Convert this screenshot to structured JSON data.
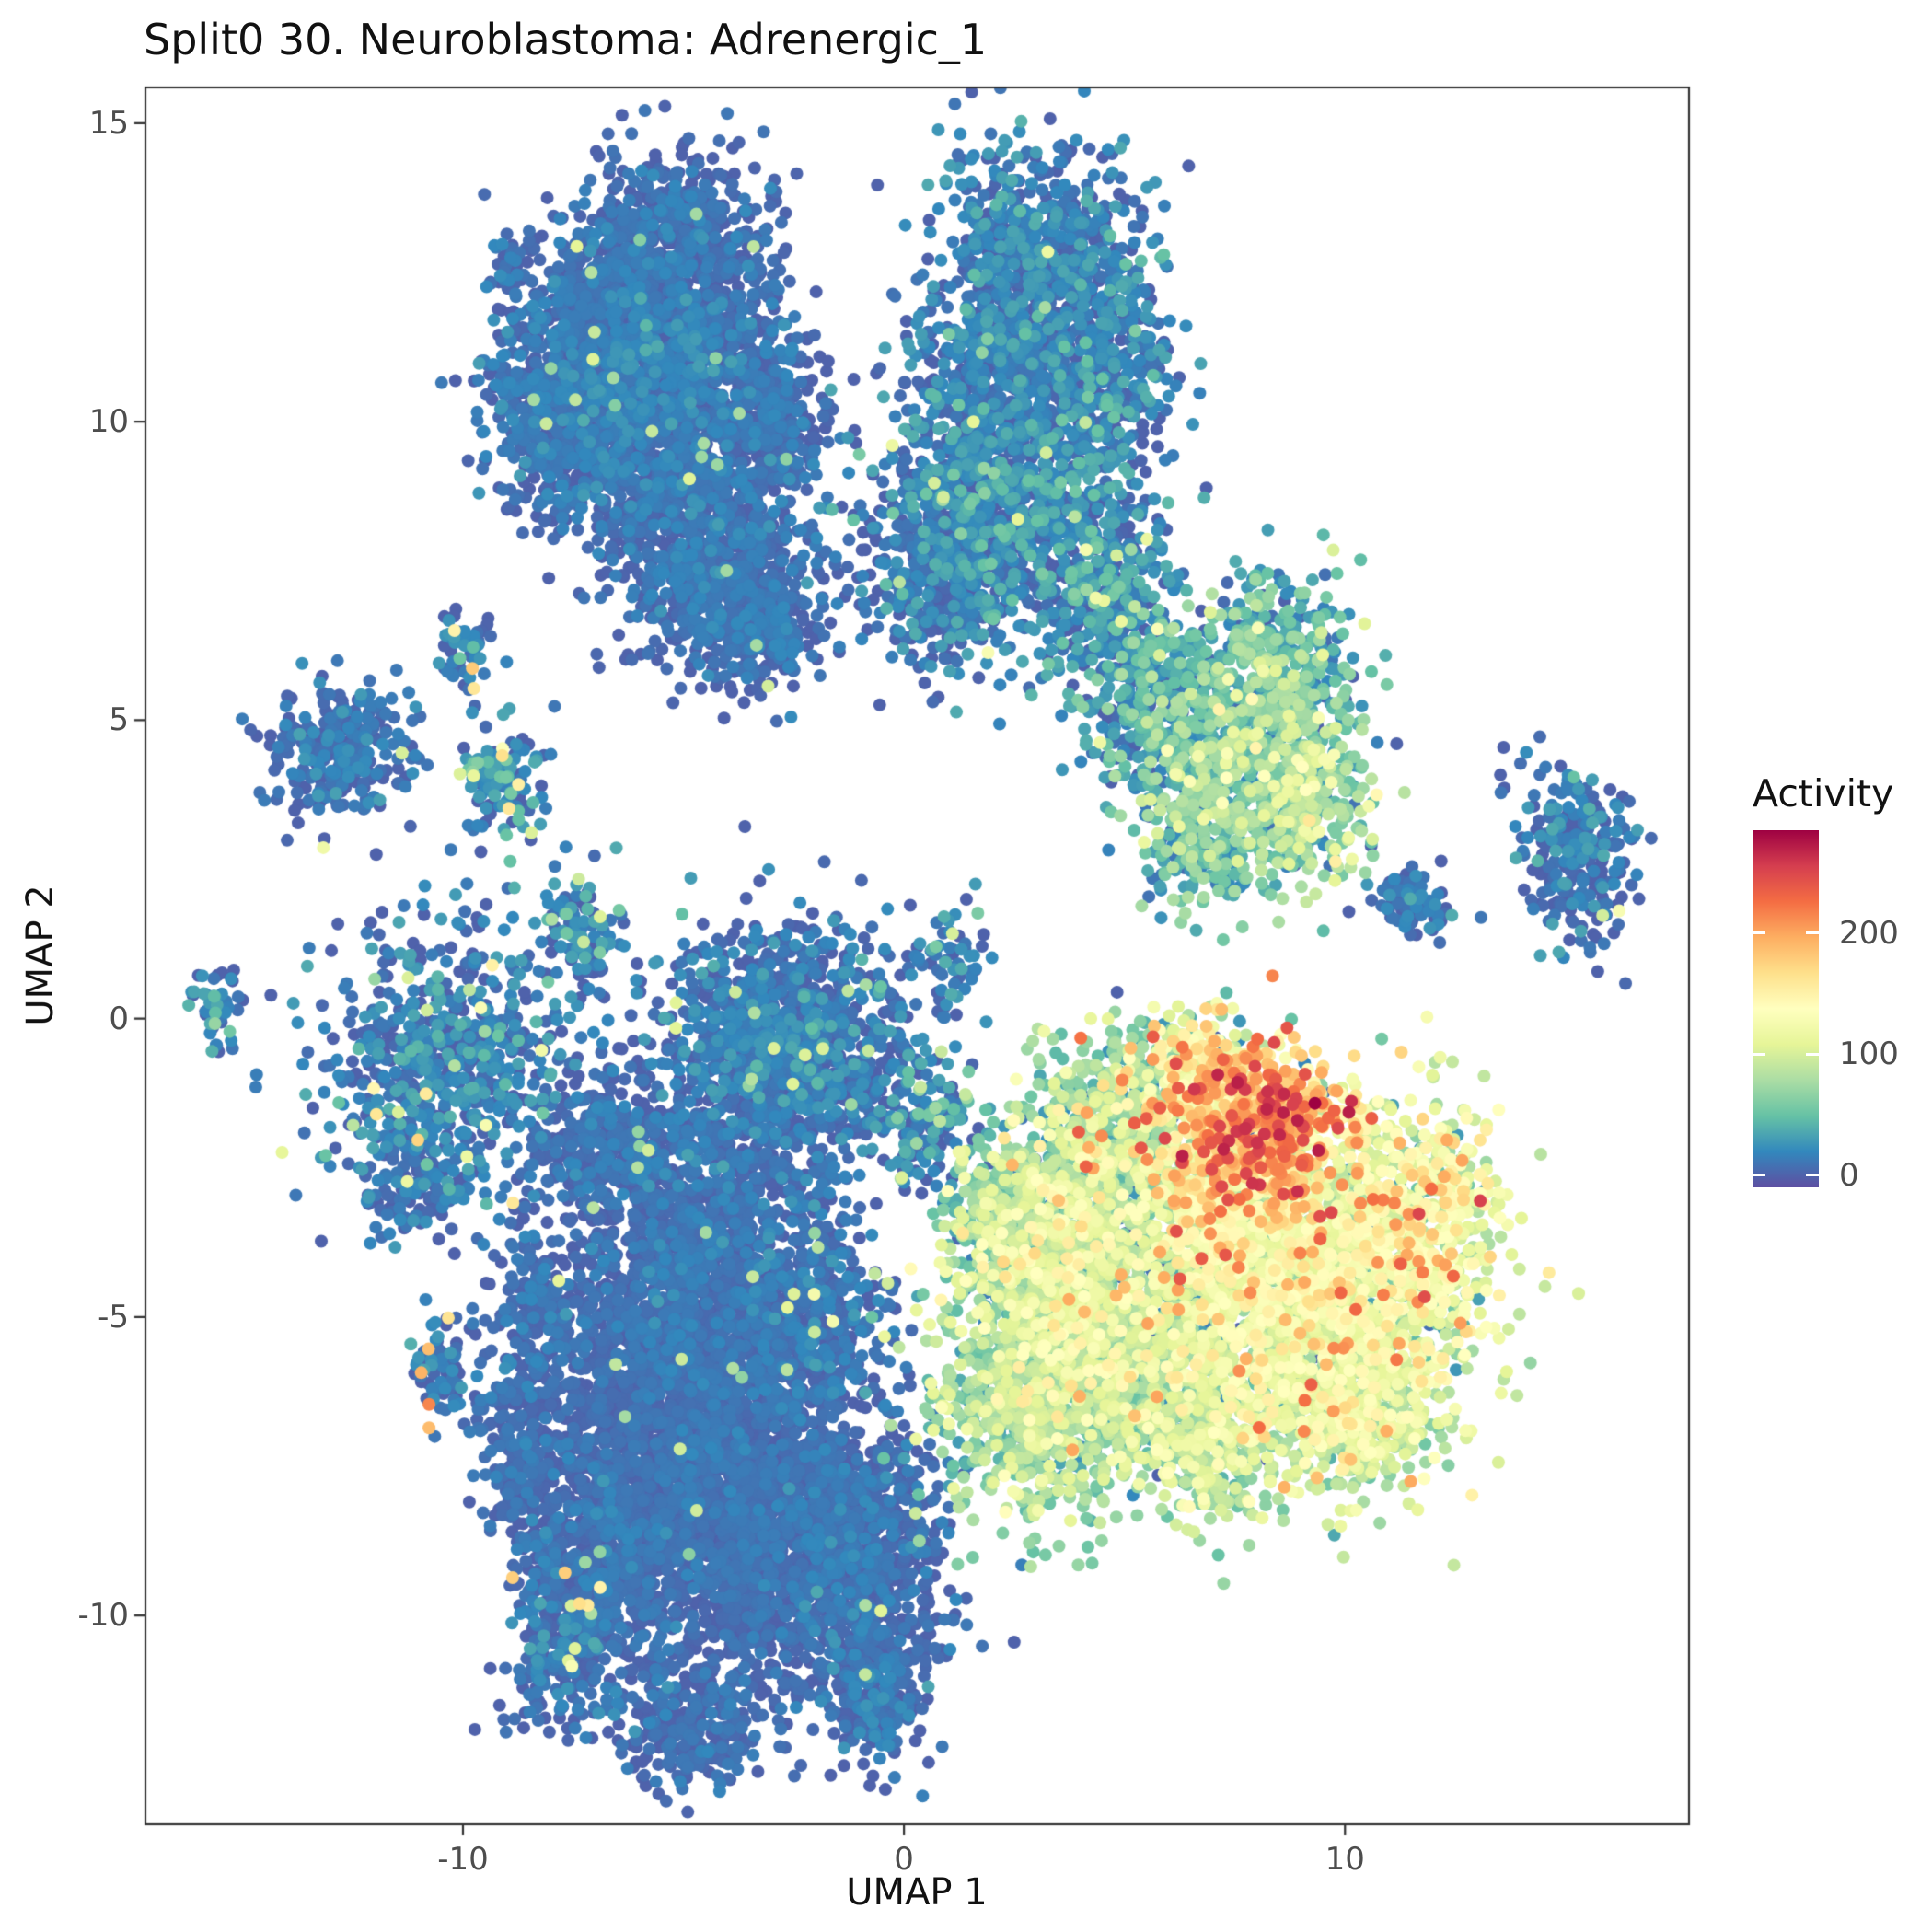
{
  "chart_data": {
    "type": "scatter",
    "title": "Split0 30. Neuroblastoma: Adrenergic_1",
    "xlabel": "UMAP 1",
    "ylabel": "UMAP 2",
    "xlim": [
      -17.2,
      17.8
    ],
    "ylim": [
      -13.5,
      15.6
    ],
    "x_ticks": [
      -10,
      0,
      10
    ],
    "y_ticks": [
      -10,
      -5,
      0,
      5,
      10,
      15
    ],
    "grid": false,
    "point_radius_px": 7,
    "colors": {
      "panel_border": "#333333",
      "tick": "#333333",
      "tick_label": "#4d4d4d",
      "title": "#111111",
      "background": "#ffffff"
    },
    "legend": {
      "title": "Activity",
      "position": "right",
      "domain": [
        -10,
        285
      ],
      "ticks": [
        0,
        100,
        200
      ],
      "colormap": [
        {
          "t": 0.0,
          "c": "#5e4fa2"
        },
        {
          "t": 0.1,
          "c": "#3288bd"
        },
        {
          "t": 0.2,
          "c": "#66c2a5"
        },
        {
          "t": 0.3,
          "c": "#abdda4"
        },
        {
          "t": 0.4,
          "c": "#e6f598"
        },
        {
          "t": 0.5,
          "c": "#ffffbf"
        },
        {
          "t": 0.6,
          "c": "#fee08b"
        },
        {
          "t": 0.7,
          "c": "#fdae61"
        },
        {
          "t": 0.8,
          "c": "#f46d43"
        },
        {
          "t": 0.9,
          "c": "#d53e4f"
        },
        {
          "t": 1.0,
          "c": "#9e0142"
        }
      ]
    },
    "seed": 42,
    "cluster_fields": [
      "cx",
      "cy",
      "sx",
      "sy",
      "n",
      "act_mean",
      "act_sd",
      "bright_frac",
      "bright_min",
      "bright_max",
      "rot"
    ],
    "clusters": [
      [
        -5.2,
        13.0,
        1.05,
        0.75,
        650,
        5,
        8,
        0.004,
        60,
        110,
        0
      ],
      [
        -6.9,
        11.7,
        0.9,
        0.75,
        480,
        5,
        8,
        0.004,
        60,
        110,
        0
      ],
      [
        -7.9,
        10.2,
        0.85,
        0.9,
        520,
        7,
        10,
        0.005,
        60,
        110,
        0
      ],
      [
        -6.3,
        9.7,
        0.8,
        0.8,
        430,
        7,
        10,
        0.004,
        60,
        110,
        0
      ],
      [
        -4.7,
        9.3,
        0.9,
        0.85,
        480,
        5,
        8,
        0.006,
        60,
        120,
        0
      ],
      [
        -3.5,
        10.7,
        0.7,
        0.9,
        330,
        5,
        8,
        0.003,
        60,
        100,
        0
      ],
      [
        -4.1,
        7.4,
        1.15,
        0.85,
        750,
        5,
        8,
        0.003,
        60,
        110,
        0
      ],
      [
        -3.0,
        6.5,
        0.5,
        0.5,
        150,
        5,
        8,
        0.003,
        60,
        100,
        0
      ],
      [
        -8.9,
        12.7,
        0.25,
        0.3,
        40,
        8,
        10,
        0,
        0,
        0,
        0
      ],
      [
        -5.6,
        11.2,
        1.0,
        0.6,
        380,
        8,
        12,
        0.005,
        60,
        110,
        0
      ],
      [
        -2.6,
        9.8,
        0.45,
        0.55,
        120,
        5,
        8,
        0.004,
        60,
        100,
        0
      ],
      [
        3.0,
        12.7,
        1.15,
        0.95,
        750,
        10,
        14,
        0.006,
        60,
        120,
        0
      ],
      [
        4.4,
        10.9,
        0.8,
        0.8,
        340,
        12,
        16,
        0.006,
        60,
        120,
        0
      ],
      [
        2.0,
        10.8,
        0.8,
        0.75,
        330,
        9,
        12,
        0.004,
        60,
        110,
        0
      ],
      [
        2.3,
        8.6,
        1.45,
        1.15,
        1050,
        14,
        18,
        0.01,
        60,
        130,
        0
      ],
      [
        0.9,
        7.4,
        0.7,
        0.8,
        280,
        10,
        14,
        0.004,
        60,
        110,
        0
      ],
      [
        4.6,
        6.8,
        0.8,
        0.9,
        340,
        20,
        20,
        0.01,
        60,
        130,
        0
      ],
      [
        5.7,
        5.3,
        0.7,
        0.9,
        280,
        30,
        24,
        0.01,
        60,
        140,
        0
      ],
      [
        7.8,
        4.6,
        1.2,
        1.0,
        650,
        55,
        28,
        0.02,
        100,
        150,
        0
      ],
      [
        8.9,
        3.5,
        0.8,
        0.65,
        280,
        65,
        30,
        0.02,
        100,
        160,
        0
      ],
      [
        6.7,
        3.1,
        0.6,
        0.7,
        190,
        50,
        25,
        0.01,
        90,
        140,
        0
      ],
      [
        8.4,
        6.0,
        0.8,
        0.7,
        280,
        35,
        24,
        0.01,
        80,
        140,
        0
      ],
      [
        1.0,
        0.9,
        0.45,
        0.6,
        60,
        15,
        16,
        0.02,
        60,
        110,
        0
      ],
      [
        15.3,
        2.7,
        0.6,
        0.8,
        270,
        8,
        12,
        0.012,
        80,
        130,
        0.3
      ],
      [
        11.5,
        1.95,
        0.55,
        0.27,
        90,
        8,
        12,
        0.022,
        90,
        130,
        -0.35
      ],
      [
        -12.7,
        4.5,
        0.78,
        0.52,
        300,
        7,
        10,
        0.008,
        60,
        120,
        0.15
      ],
      [
        -9.9,
        6.1,
        0.3,
        0.35,
        60,
        12,
        16,
        0.035,
        140,
        190,
        0
      ],
      [
        -9.2,
        4.05,
        0.5,
        0.45,
        120,
        20,
        22,
        0.05,
        100,
        170,
        0
      ],
      [
        -15.6,
        0.2,
        0.28,
        0.33,
        55,
        15,
        20,
        0.05,
        60,
        110,
        0
      ],
      [
        -10.4,
        -0.7,
        1.4,
        1.15,
        680,
        12,
        16,
        0.03,
        60,
        180,
        0
      ],
      [
        -7.4,
        1.4,
        0.45,
        0.55,
        110,
        15,
        18,
        0.03,
        70,
        120,
        0
      ],
      [
        -11.0,
        -2.8,
        0.5,
        0.4,
        110,
        8,
        12,
        0.02,
        60,
        120,
        0
      ],
      [
        -2.6,
        -0.5,
        1.35,
        1.0,
        1300,
        8,
        12,
        0.008,
        60,
        120,
        0
      ],
      [
        0.5,
        -1.7,
        0.55,
        0.55,
        140,
        20,
        20,
        0.02,
        60,
        120,
        0
      ],
      [
        -4.6,
        -3.4,
        1.2,
        1.0,
        800,
        5,
        8,
        0.003,
        60,
        100,
        0
      ],
      [
        -5.0,
        -6.4,
        1.5,
        1.6,
        2100,
        4,
        6,
        0.002,
        60,
        100,
        0
      ],
      [
        -3.4,
        -8.7,
        1.2,
        1.35,
        1200,
        4,
        6,
        0.002,
        60,
        100,
        0
      ],
      [
        -6.6,
        -9.1,
        0.8,
        1.0,
        480,
        5,
        8,
        0.004,
        60,
        110,
        0
      ],
      [
        -8.6,
        -7.4,
        0.55,
        1.15,
        300,
        5,
        8,
        0.004,
        60,
        110,
        0.25
      ],
      [
        -7.8,
        -10.4,
        0.5,
        0.75,
        230,
        8,
        12,
        0.025,
        90,
        185,
        -0.3
      ],
      [
        -10.5,
        -5.8,
        0.3,
        0.5,
        70,
        8,
        12,
        0.02,
        160,
        215,
        0
      ],
      [
        -0.9,
        -9.2,
        0.95,
        1.3,
        850,
        5,
        8,
        0.003,
        60,
        110,
        0
      ],
      [
        -0.6,
        -11.4,
        0.5,
        0.55,
        180,
        7,
        10,
        0.004,
        60,
        100,
        0
      ],
      [
        -5.0,
        -11.9,
        0.8,
        0.5,
        240,
        5,
        8,
        0.004,
        60,
        100,
        0
      ],
      [
        -2.1,
        -5.0,
        0.85,
        0.85,
        420,
        7,
        10,
        0.01,
        60,
        130,
        0
      ],
      [
        1.2,
        -10.0,
        0.07,
        0.07,
        2,
        8,
        6,
        0,
        0,
        0,
        0
      ],
      [
        -6.9,
        -2.2,
        0.7,
        0.6,
        280,
        5,
        8,
        0.003,
        60,
        100,
        0
      ],
      [
        -8.2,
        -4.9,
        0.45,
        0.75,
        170,
        5,
        8,
        0.01,
        60,
        120,
        0.2
      ],
      [
        3.6,
        -4.4,
        1.2,
        1.1,
        1000,
        90,
        30,
        0.01,
        160,
        220,
        0
      ],
      [
        3.1,
        -6.5,
        1.2,
        1.0,
        800,
        70,
        26,
        0.005,
        150,
        200,
        0
      ],
      [
        5.1,
        -5.6,
        0.9,
        1.0,
        500,
        75,
        28,
        0.008,
        150,
        210,
        0
      ],
      [
        2.2,
        -3.3,
        0.7,
        0.7,
        300,
        55,
        26,
        0.01,
        140,
        200,
        0
      ],
      [
        9.2,
        -4.6,
        1.75,
        1.45,
        1950,
        105,
        28,
        0.02,
        170,
        240,
        0
      ],
      [
        11.7,
        -3.4,
        0.85,
        0.9,
        430,
        110,
        35,
        0.03,
        180,
        255,
        0
      ],
      [
        7.2,
        -3.1,
        1.0,
        0.9,
        520,
        110,
        35,
        0.03,
        170,
        240,
        0
      ],
      [
        8.0,
        -1.8,
        1.0,
        0.72,
        520,
        185,
        32,
        0.1,
        230,
        272,
        0
      ],
      [
        6.7,
        -0.95,
        0.7,
        0.5,
        230,
        120,
        40,
        0.05,
        200,
        250,
        0
      ],
      [
        5.2,
        -1.5,
        1.0,
        0.7,
        380,
        60,
        25,
        0.02,
        120,
        180,
        0
      ],
      [
        4.3,
        -2.4,
        0.8,
        0.6,
        280,
        75,
        30,
        0.025,
        150,
        255,
        0
      ],
      [
        10.4,
        -6.5,
        0.9,
        0.75,
        380,
        95,
        26,
        0.01,
        160,
        210,
        0
      ],
      [
        6.9,
        -7.1,
        0.8,
        0.65,
        330,
        80,
        25,
        0.005,
        150,
        200,
        0
      ],
      [
        7.2,
        -4.2,
        2.0,
        1.5,
        160,
        12,
        12,
        0,
        0,
        0,
        0
      ]
    ]
  }
}
